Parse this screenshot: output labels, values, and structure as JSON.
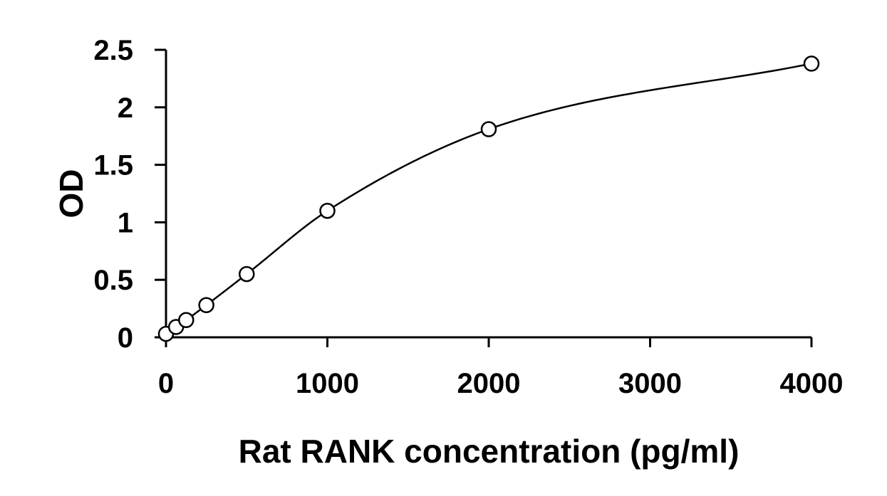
{
  "chart_data": {
    "type": "scatter",
    "title": "",
    "xlabel": "Rat RANK concentration (pg/ml)",
    "ylabel": "OD",
    "xlim": [
      0,
      4000
    ],
    "ylim": [
      0,
      2.5
    ],
    "x_ticks": [
      0,
      1000,
      2000,
      3000,
      4000
    ],
    "y_ticks": [
      0,
      0.5,
      1,
      1.5,
      2,
      2.5
    ],
    "x_tick_labels": [
      "0",
      "1000",
      "2000",
      "3000",
      "4000"
    ],
    "y_tick_labels": [
      "0",
      "0.5",
      "1",
      "1.5",
      "2",
      "2.5"
    ],
    "grid": false,
    "legend": "none",
    "series": [
      {
        "marker": "open-circle",
        "line": "smooth-fit",
        "color": "#000000",
        "x": [
          0,
          62.5,
          125,
          250,
          500,
          1000,
          2000,
          4000
        ],
        "y": [
          0.03,
          0.09,
          0.15,
          0.28,
          0.55,
          1.1,
          1.81,
          2.38
        ]
      }
    ]
  }
}
